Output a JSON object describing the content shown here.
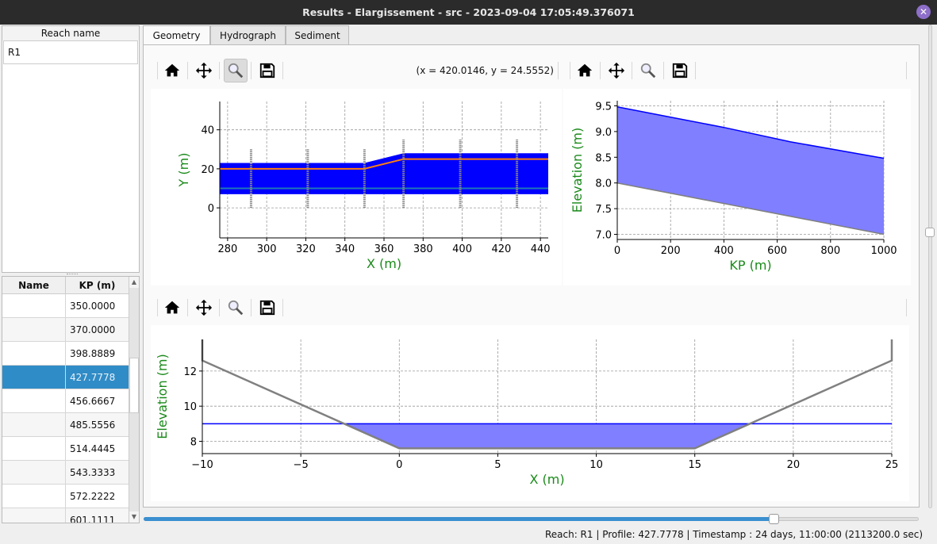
{
  "window": {
    "title": "Results - Elargissement - src - 2023-09-04 17:05:49.376071",
    "close_icon": "close-icon"
  },
  "reach_list": {
    "header": "Reach name",
    "items": [
      "R1"
    ]
  },
  "profile_table": {
    "headers": [
      "Name",
      "KP (m)"
    ],
    "selected_index": 3,
    "rows": [
      {
        "name": "",
        "kp": "350.0000"
      },
      {
        "name": "",
        "kp": "370.0000"
      },
      {
        "name": "",
        "kp": "398.8889"
      },
      {
        "name": "",
        "kp": "427.7778"
      },
      {
        "name": "",
        "kp": "456.6667"
      },
      {
        "name": "",
        "kp": "485.5556"
      },
      {
        "name": "",
        "kp": "514.4445"
      },
      {
        "name": "",
        "kp": "543.3333"
      },
      {
        "name": "",
        "kp": "572.2222"
      },
      {
        "name": "",
        "kp": "601.1111"
      }
    ]
  },
  "tabs": [
    {
      "label": "Geometry",
      "active": true
    },
    {
      "label": "Hydrograph",
      "active": false
    },
    {
      "label": "Sediment",
      "active": false
    }
  ],
  "toolbar": {
    "icons": [
      "home-icon",
      "move-icon",
      "zoom-icon",
      "save-icon"
    ],
    "coords": "(x = 420.0146,   y = 24.5552)"
  },
  "colors": {
    "label": "#1a8a1a",
    "water_fill": "#7f7fff",
    "water_line": "#0000ff",
    "bed": "#808080",
    "band": "#0000ff",
    "center": "#ff7f0e",
    "axis_line": "#1f77b4",
    "accent": "#308cc6"
  },
  "chart_data": [
    {
      "type": "area",
      "xlabel": "X (m)",
      "ylabel": "Y (m)",
      "xlim": [
        276,
        444
      ],
      "ylim": [
        -15.4,
        54.5
      ],
      "grid": true,
      "xticks": [
        280,
        300,
        320,
        340,
        360,
        380,
        400,
        420,
        440
      ],
      "yticks": [
        0,
        20,
        40
      ],
      "band": {
        "x": [
          276,
          350,
          370,
          444
        ],
        "lower": [
          7,
          7,
          7,
          7
        ],
        "upper": [
          23,
          23,
          28,
          28
        ]
      },
      "center_line": {
        "x": [
          276,
          350,
          370,
          444
        ],
        "y": [
          20,
          20,
          25,
          25
        ]
      },
      "axis_line": {
        "x": [
          276,
          444
        ],
        "y": [
          10,
          10
        ]
      },
      "profiles": [
        {
          "x": 292,
          "ymin": 0,
          "ymax": 30
        },
        {
          "x": 321,
          "ymin": 0,
          "ymax": 30
        },
        {
          "x": 350,
          "ymin": 0,
          "ymax": 30
        },
        {
          "x": 370,
          "ymin": 0,
          "ymax": 35
        },
        {
          "x": 399,
          "ymin": 0,
          "ymax": 35
        },
        {
          "x": 428,
          "ymin": 0,
          "ymax": 35
        }
      ]
    },
    {
      "type": "area",
      "xlabel": "KP (m)",
      "ylabel": "Elevation (m)",
      "xlim": [
        0,
        1000
      ],
      "ylim": [
        6.9,
        9.6
      ],
      "grid": true,
      "xticks": [
        0,
        200,
        400,
        600,
        800,
        1000
      ],
      "yticks": [
        7.0,
        7.5,
        8.0,
        8.5,
        9.0,
        9.5
      ],
      "ytick_labels": [
        "7.0",
        "7.5",
        "8.0",
        "8.5",
        "9.0",
        "9.5"
      ],
      "series": [
        {
          "x": [
            0,
            200,
            370,
            400,
            650,
            1000
          ],
          "y": [
            9.48,
            9.28,
            9.11,
            9.08,
            8.8,
            8.48
          ]
        },
        {
          "x": [
            0,
            1000
          ],
          "y": [
            8.0,
            7.0
          ]
        }
      ]
    },
    {
      "type": "area",
      "xlabel": "X (m)",
      "ylabel": "Elevation (m)",
      "xlim": [
        -10,
        25
      ],
      "ylim": [
        7.3,
        13.8
      ],
      "grid": true,
      "xticks": [
        -10,
        -5,
        0,
        5,
        10,
        15,
        20,
        25
      ],
      "xtick_labels": [
        "−10",
        "−5",
        "0",
        "5",
        "10",
        "15",
        "20",
        "25"
      ],
      "yticks": [
        8,
        10,
        12
      ],
      "water_level": 9.0,
      "bed": {
        "x": [
          -10,
          -10,
          0,
          15,
          25,
          25
        ],
        "y": [
          13.8,
          12.6,
          7.6,
          7.6,
          12.6,
          13.8
        ]
      }
    }
  ],
  "slider": {
    "value_fraction": 0.813
  },
  "status": "Reach: R1 | Profile: 427.7778 | Timestamp : 24 days, 11:00:00 (2113200.0 sec)"
}
